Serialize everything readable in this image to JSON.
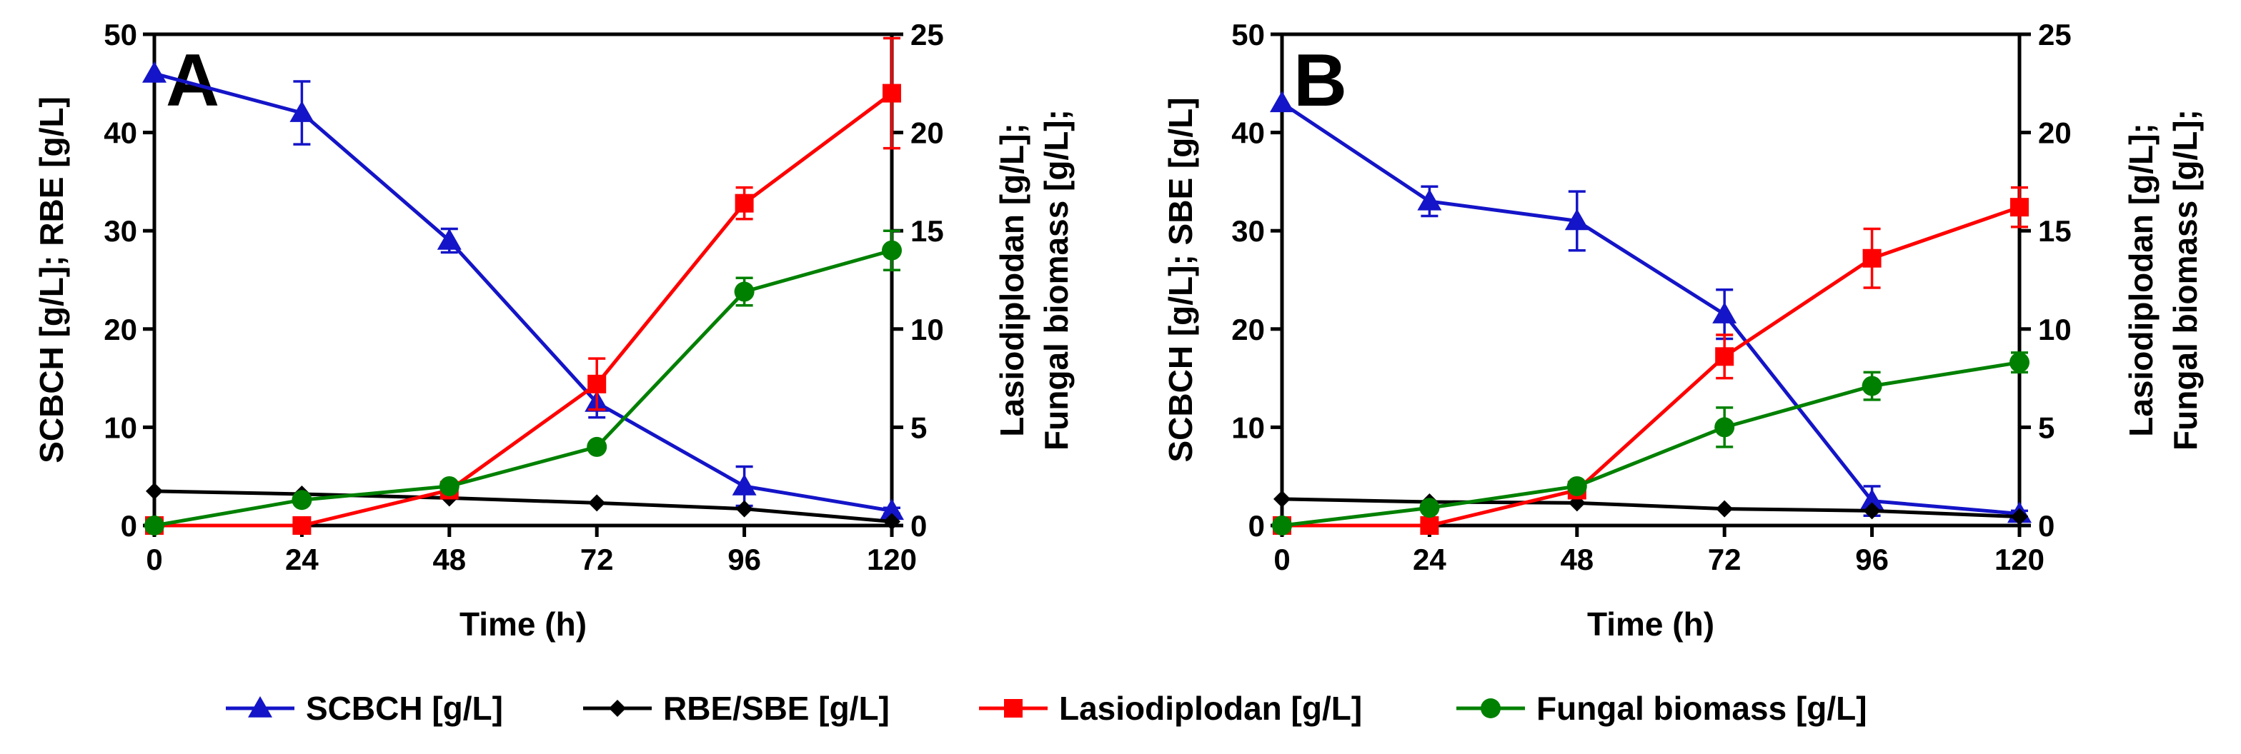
{
  "chart_data": [
    {
      "panel": "A",
      "type": "line",
      "xlabel": "Time (h)",
      "ylabel_left": "SCBCH [g/L]; RBE [g/L]",
      "ylabel_right_line1": "Lasiodiplodan [g/L];",
      "ylabel_right_line2": "Fungal biomass [g/L];",
      "x": [
        0,
        24,
        48,
        72,
        96,
        120
      ],
      "xlim": [
        0,
        120
      ],
      "ylim_left": [
        0,
        50
      ],
      "ylim_right": [
        0,
        25
      ],
      "x_ticks": [
        "0",
        "24",
        "48",
        "72",
        "96",
        "120"
      ],
      "y_left_ticks": [
        "0",
        "10",
        "20",
        "30",
        "40",
        "50"
      ],
      "y_right_ticks": [
        "0",
        "5",
        "10",
        "15",
        "20",
        "25"
      ],
      "series": [
        {
          "name": "SCBCH [g/L]",
          "axis": "left",
          "values": [
            46,
            42,
            29,
            12.5,
            4,
            1.5
          ],
          "errors": [
            0,
            3.2,
            1.2,
            1.5,
            2,
            0.3
          ]
        },
        {
          "name": "RBE/SBE [g/L]",
          "axis": "left",
          "values": [
            3.5,
            3.2,
            2.8,
            2.3,
            1.7,
            0.4
          ],
          "errors": [
            0,
            0,
            0,
            0,
            0,
            0
          ]
        },
        {
          "name": "Lasiodiplodan [g/L]",
          "axis": "right",
          "values": [
            0,
            0,
            1.8,
            7.2,
            16.4,
            22
          ],
          "errors": [
            0,
            0,
            0,
            1.3,
            0.8,
            2.8
          ]
        },
        {
          "name": "Fungal biomass [g/L]",
          "axis": "right",
          "values": [
            0,
            1.3,
            2,
            4,
            11.9,
            14
          ],
          "errors": [
            0,
            0,
            0,
            0,
            0.7,
            1
          ]
        }
      ]
    },
    {
      "panel": "B",
      "type": "line",
      "xlabel": "Time (h)",
      "ylabel_left": "SCBCH [g/L]; SBE [g/L]",
      "ylabel_right_line1": "Lasiodiplodan [g/L];",
      "ylabel_right_line2": "Fungal biomass [g/L];",
      "x": [
        0,
        24,
        48,
        72,
        96,
        120
      ],
      "xlim": [
        0,
        120
      ],
      "ylim_left": [
        0,
        50
      ],
      "ylim_right": [
        0,
        25
      ],
      "x_ticks": [
        "0",
        "24",
        "48",
        "72",
        "96",
        "120"
      ],
      "y_left_ticks": [
        "0",
        "10",
        "20",
        "30",
        "40",
        "50"
      ],
      "y_right_ticks": [
        "0",
        "5",
        "10",
        "15",
        "20",
        "25"
      ],
      "series": [
        {
          "name": "SCBCH [g/L]",
          "axis": "left",
          "values": [
            43,
            33,
            31,
            21.5,
            2.5,
            1.2
          ],
          "errors": [
            0,
            1.5,
            3,
            2.5,
            1.5,
            0.3
          ]
        },
        {
          "name": "RBE/SBE [g/L]",
          "axis": "left",
          "values": [
            2.7,
            2.4,
            2.3,
            1.7,
            1.5,
            0.9
          ],
          "errors": [
            0,
            0,
            0,
            0,
            0,
            0
          ]
        },
        {
          "name": "Lasiodiplodan [g/L]",
          "axis": "right",
          "values": [
            0,
            0,
            1.8,
            8.6,
            13.6,
            16.2
          ],
          "errors": [
            0,
            0,
            0,
            1.1,
            1.5,
            1
          ]
        },
        {
          "name": "Fungal biomass [g/L]",
          "axis": "right",
          "values": [
            0,
            0.9,
            2,
            5,
            7.1,
            8.3
          ],
          "errors": [
            0,
            0,
            0,
            1,
            0.7,
            0.5
          ]
        }
      ]
    }
  ],
  "legend": [
    {
      "label": "SCBCH [g/L]",
      "marker": "triangle",
      "color": "#1414c8"
    },
    {
      "label": "RBE/SBE [g/L]",
      "marker": "diamond",
      "color": "#000000"
    },
    {
      "label": "Lasiodiplodan [g/L]",
      "marker": "square",
      "color": "#ff0000"
    },
    {
      "label": "Fungal biomass [g/L]",
      "marker": "circle",
      "color": "#008000"
    }
  ]
}
